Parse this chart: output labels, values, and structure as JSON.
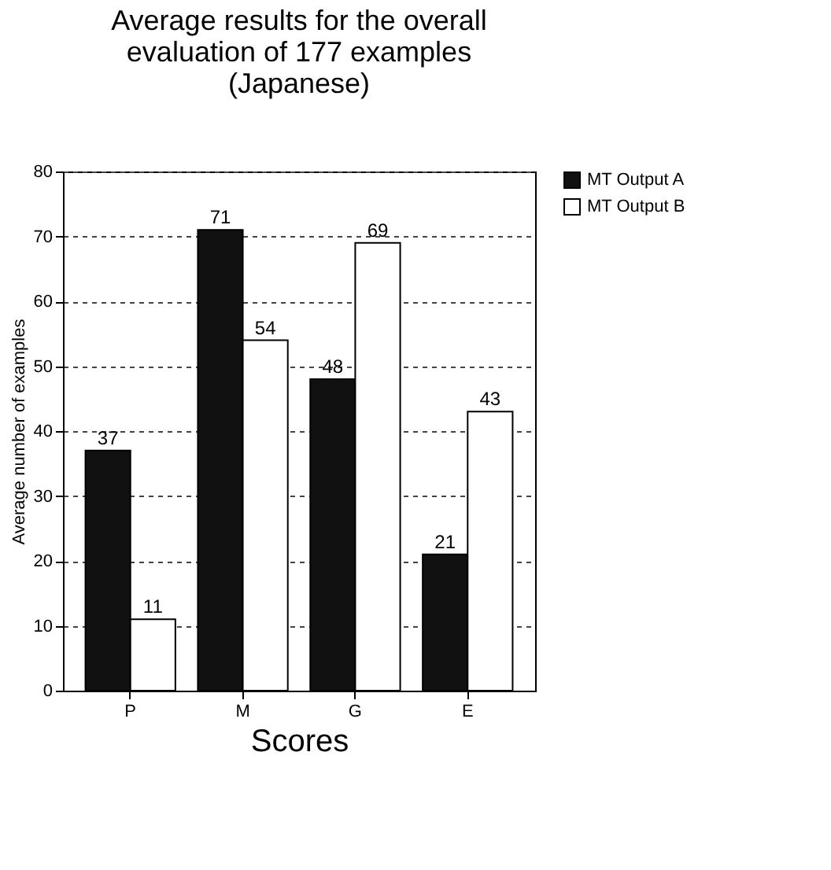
{
  "chart_data": {
    "type": "bar",
    "title": [
      "Average results for the overall",
      "evaluation of 177 examples",
      "(Japanese)"
    ],
    "xlabel": "Scores",
    "ylabel": "Average number of examples",
    "categories": [
      "P",
      "M",
      "G",
      "E"
    ],
    "series": [
      {
        "name": "MT Output A",
        "color": "#111111",
        "values": [
          37,
          71,
          48,
          21
        ]
      },
      {
        "name": "MT Output B",
        "color": "#ffffff",
        "values": [
          11,
          54,
          69,
          43
        ]
      }
    ],
    "ylim": [
      0,
      80
    ],
    "yticks": [
      0,
      10,
      20,
      30,
      40,
      50,
      60,
      70,
      80
    ],
    "grid": "y",
    "legend": "right",
    "data_labels": true
  }
}
